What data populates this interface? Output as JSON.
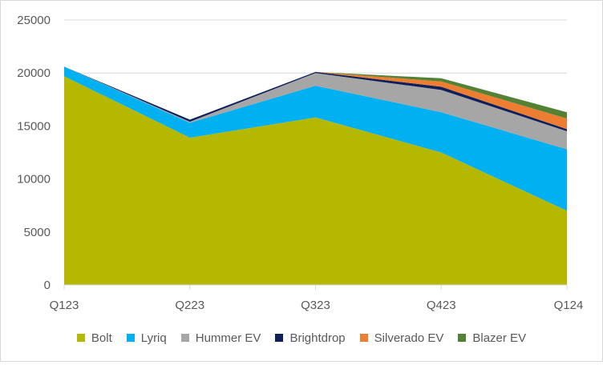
{
  "chart_data": {
    "type": "area",
    "stacked": true,
    "categories": [
      "Q123",
      "Q223",
      "Q323",
      "Q423",
      "Q124"
    ],
    "series": [
      {
        "name": "Bolt",
        "color": "#b5b800",
        "values": [
          19700,
          13900,
          15800,
          12500,
          7000
        ]
      },
      {
        "name": "Lyriq",
        "color": "#00b0f0",
        "values": [
          900,
          1400,
          3000,
          3800,
          5800
        ]
      },
      {
        "name": "Hummer EV",
        "color": "#a6a6a6",
        "values": [
          0,
          100,
          1200,
          2100,
          1700
        ]
      },
      {
        "name": "Brightdrop",
        "color": "#0e1f5b",
        "values": [
          0,
          200,
          100,
          300,
          200
        ]
      },
      {
        "name": "Silverado EV",
        "color": "#ed7d31",
        "values": [
          0,
          0,
          0,
          500,
          1000
        ]
      },
      {
        "name": "Blazer EV",
        "color": "#548235",
        "values": [
          0,
          0,
          0,
          300,
          600
        ]
      }
    ],
    "ylim": [
      0,
      25000
    ],
    "yticks": [
      "0",
      "5000",
      "10000",
      "15000",
      "20000",
      "25000"
    ],
    "grid": true,
    "legend": "bottom",
    "title": "",
    "xlabel": "",
    "ylabel": ""
  }
}
